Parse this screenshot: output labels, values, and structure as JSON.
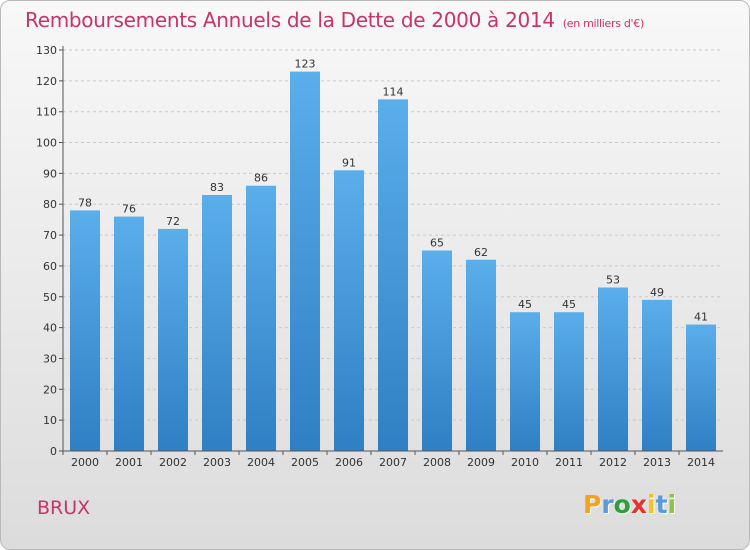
{
  "chart_data": {
    "type": "bar",
    "title": "Remboursements Annuels de la Dette de 2000 à 2014",
    "subtitle": "(en milliers d'€)",
    "categories": [
      "2000",
      "2001",
      "2002",
      "2003",
      "2004",
      "2005",
      "2006",
      "2007",
      "2008",
      "2009",
      "2010",
      "2011",
      "2012",
      "2013",
      "2014"
    ],
    "values": [
      78,
      76,
      72,
      83,
      86,
      123,
      91,
      114,
      65,
      62,
      45,
      45,
      53,
      49,
      41
    ],
    "ylim": [
      0,
      130
    ],
    "yticks": [
      0,
      10,
      20,
      30,
      40,
      50,
      60,
      70,
      80,
      90,
      100,
      110,
      120,
      130
    ],
    "grid": true,
    "bar_color": "#4da2e3",
    "bar_color_dark": "#2f7fc4"
  },
  "footer": {
    "place": "BRUX",
    "brand_letters": [
      "P",
      "r",
      "o",
      "x",
      "i",
      "t",
      "i"
    ],
    "brand_colors": [
      "#f7a21b",
      "#5a9ad6",
      "#2f9e3a",
      "#e8332a",
      "#f7c21b",
      "#5a9ad6",
      "#8cc63f"
    ]
  }
}
